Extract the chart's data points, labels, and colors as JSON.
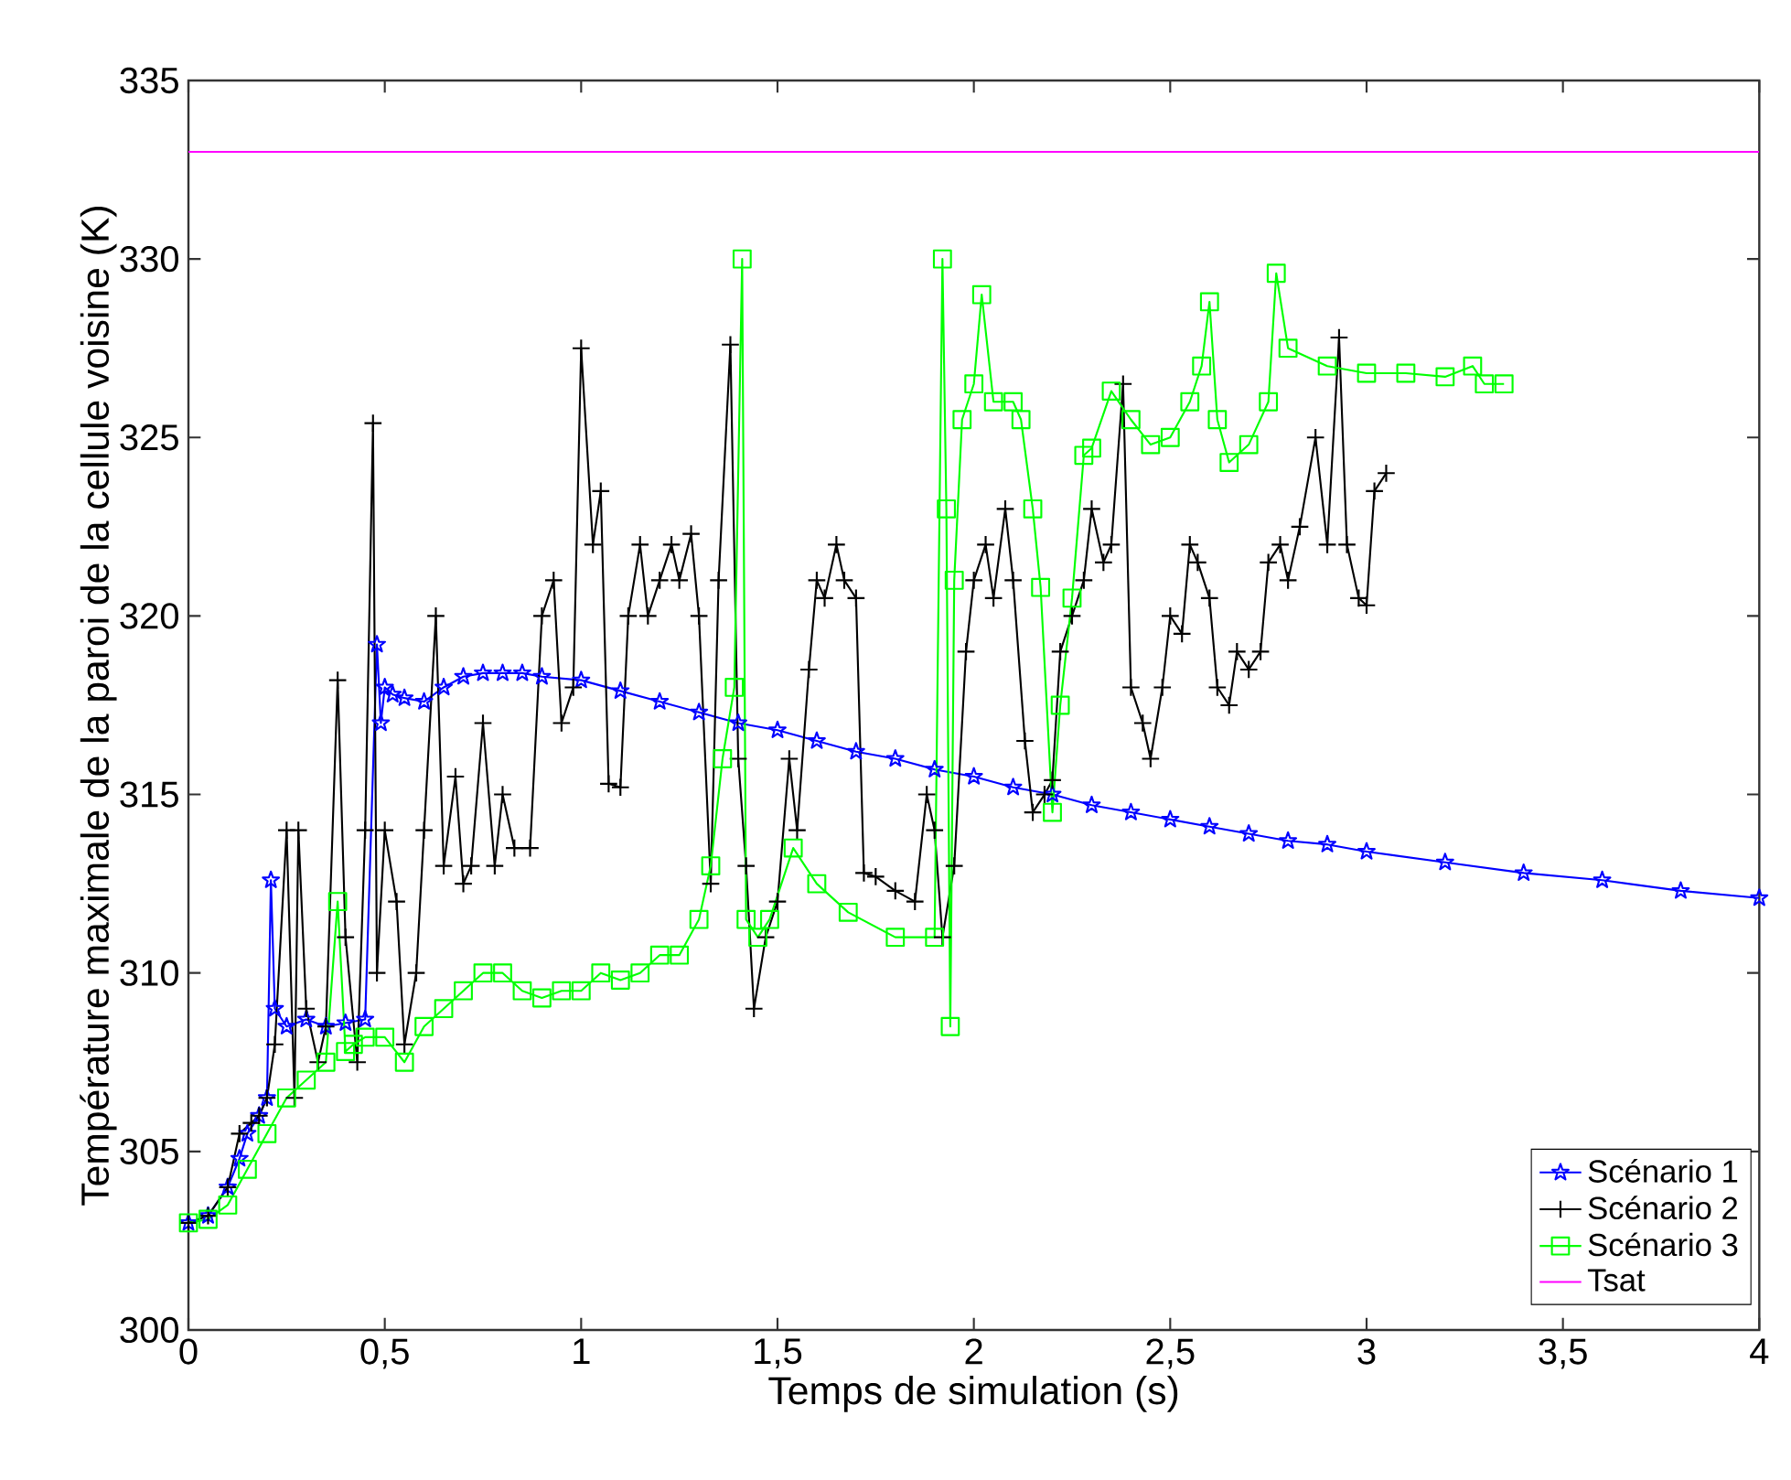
{
  "chart_data": {
    "type": "line",
    "xlabel": "Temps de simulation (s)",
    "ylabel": "Température maximale de la paroi de la cellule voisine (K)",
    "xlim": [
      0,
      4
    ],
    "ylim": [
      300,
      335
    ],
    "xticks": [
      0,
      {
        "value": 0.5,
        "label": "0,5"
      },
      1,
      {
        "value": 1.5,
        "label": "1,5"
      },
      2,
      {
        "value": 2.5,
        "label": "2,5"
      },
      3,
      {
        "value": 3.5,
        "label": "3,5"
      },
      4
    ],
    "yticks": [
      300,
      305,
      310,
      315,
      320,
      325,
      330,
      335
    ],
    "grid": false,
    "legend": "bottom right",
    "line_style": "solid",
    "series": [
      {
        "name": "Scénario 1",
        "color": "#0000ff",
        "marker": "star",
        "x": [
          0,
          0.05,
          0.1,
          0.13,
          0.15,
          0.18,
          0.2,
          0.21,
          0.22,
          0.25,
          0.3,
          0.35,
          0.4,
          0.45,
          0.48,
          0.49,
          0.5,
          0.52,
          0.55,
          0.6,
          0.65,
          0.7,
          0.75,
          0.8,
          0.85,
          0.9,
          1.0,
          1.1,
          1.2,
          1.3,
          1.4,
          1.5,
          1.6,
          1.7,
          1.8,
          1.9,
          2.0,
          2.1,
          2.2,
          2.3,
          2.4,
          2.5,
          2.6,
          2.7,
          2.8,
          2.9,
          3.0,
          3.2,
          3.4,
          3.6,
          3.8,
          4.0
        ],
        "values": [
          303,
          303.2,
          304,
          304.8,
          305.5,
          306,
          306.5,
          312.6,
          309,
          308.5,
          308.7,
          308.5,
          308.6,
          308.7,
          319.2,
          317,
          318,
          317.8,
          317.7,
          317.6,
          318,
          318.3,
          318.4,
          318.4,
          318.4,
          318.3,
          318.2,
          317.9,
          317.6,
          317.3,
          317,
          316.8,
          316.5,
          316.2,
          316,
          315.7,
          315.5,
          315.2,
          315,
          314.7,
          314.5,
          314.3,
          314.1,
          313.9,
          313.7,
          313.6,
          313.4,
          313.1,
          312.8,
          312.6,
          312.3,
          312.1
        ]
      },
      {
        "name": "Scénario 2",
        "color": "#000000",
        "marker": "cross",
        "x": [
          0,
          0.05,
          0.1,
          0.13,
          0.16,
          0.18,
          0.2,
          0.22,
          0.25,
          0.27,
          0.28,
          0.3,
          0.33,
          0.35,
          0.38,
          0.4,
          0.43,
          0.45,
          0.47,
          0.48,
          0.5,
          0.53,
          0.55,
          0.58,
          0.6,
          0.63,
          0.65,
          0.68,
          0.7,
          0.72,
          0.75,
          0.78,
          0.8,
          0.83,
          0.87,
          0.9,
          0.93,
          0.95,
          0.98,
          1.0,
          1.03,
          1.05,
          1.07,
          1.1,
          1.12,
          1.15,
          1.17,
          1.2,
          1.23,
          1.25,
          1.28,
          1.3,
          1.33,
          1.35,
          1.38,
          1.4,
          1.42,
          1.44,
          1.47,
          1.5,
          1.53,
          1.55,
          1.58,
          1.6,
          1.62,
          1.65,
          1.67,
          1.7,
          1.72,
          1.75,
          1.8,
          1.85,
          1.88,
          1.9,
          1.92,
          1.95,
          1.98,
          2.0,
          2.03,
          2.05,
          2.08,
          2.1,
          2.13,
          2.15,
          2.18,
          2.2,
          2.22,
          2.25,
          2.28,
          2.3,
          2.33,
          2.35,
          2.38,
          2.4,
          2.43,
          2.45,
          2.48,
          2.5,
          2.53,
          2.55,
          2.57,
          2.6,
          2.62,
          2.65,
          2.67,
          2.7,
          2.73,
          2.75,
          2.78,
          2.8,
          2.83,
          2.87,
          2.9,
          2.93,
          2.95,
          2.98,
          3.0,
          3.02,
          3.05
        ],
        "values": [
          303,
          303.2,
          304,
          305.5,
          305.8,
          306,
          306.5,
          308,
          314,
          306.5,
          314,
          309,
          307.5,
          308.5,
          318.2,
          311,
          307.5,
          314,
          325.4,
          310,
          314,
          312,
          308,
          310,
          314,
          320,
          313,
          315.5,
          312.5,
          313,
          317,
          313,
          315,
          313.5,
          313.5,
          320,
          321,
          317,
          318,
          327.5,
          322,
          323.5,
          315.3,
          315.2,
          320,
          322,
          320,
          321,
          322,
          321,
          322.3,
          320,
          312.5,
          321,
          327.6,
          316,
          313,
          309,
          311,
          312,
          316,
          314,
          318.5,
          321,
          320.5,
          322,
          321,
          320.5,
          312.8,
          312.7,
          312.3,
          312,
          315,
          314,
          311,
          313,
          319,
          321,
          322,
          320.5,
          323,
          321,
          316.5,
          314.5,
          315,
          315.4,
          319,
          320,
          321,
          323,
          321.5,
          322,
          326.5,
          318,
          317,
          316,
          318,
          320,
          319.5,
          322,
          321.5,
          320.5,
          318,
          317.5,
          319,
          318.5,
          319,
          321.5,
          322,
          321,
          322.5,
          325,
          322,
          327.8,
          322,
          320.5,
          320.3,
          323.5,
          324
        ]
      },
      {
        "name": "Scénario 3",
        "color": "#00ff00",
        "marker": "square",
        "x": [
          0,
          0.05,
          0.1,
          0.15,
          0.2,
          0.25,
          0.3,
          0.35,
          0.38,
          0.4,
          0.42,
          0.45,
          0.5,
          0.55,
          0.6,
          0.65,
          0.7,
          0.75,
          0.8,
          0.85,
          0.9,
          0.95,
          1.0,
          1.05,
          1.1,
          1.15,
          1.2,
          1.25,
          1.3,
          1.33,
          1.36,
          1.39,
          1.41,
          1.42,
          1.45,
          1.48,
          1.54,
          1.6,
          1.68,
          1.8,
          1.9,
          1.92,
          1.93,
          1.94,
          1.95,
          1.97,
          2.0,
          2.02,
          2.05,
          2.1,
          2.12,
          2.15,
          2.17,
          2.2,
          2.22,
          2.25,
          2.28,
          2.3,
          2.35,
          2.4,
          2.45,
          2.5,
          2.55,
          2.58,
          2.6,
          2.62,
          2.65,
          2.7,
          2.75,
          2.77,
          2.8,
          2.9,
          3.0,
          3.1,
          3.2,
          3.27,
          3.3,
          3.35
        ],
        "values": [
          303,
          303.1,
          303.5,
          304.5,
          305.5,
          306.5,
          307,
          307.5,
          312,
          307.8,
          308,
          308.2,
          308.2,
          307.5,
          308.5,
          309,
          309.5,
          310,
          310,
          309.5,
          309.3,
          309.5,
          309.5,
          310,
          309.8,
          310,
          310.5,
          310.5,
          311.5,
          313,
          316,
          318,
          330,
          311.5,
          311,
          311.5,
          313.5,
          312.5,
          311.7,
          311,
          311,
          330,
          323,
          308.5,
          321,
          325.5,
          326.5,
          329,
          326,
          326,
          325.5,
          323,
          320.8,
          314.5,
          317.5,
          320.5,
          324.5,
          324.7,
          326.3,
          325.5,
          324.8,
          325,
          326,
          327,
          328.8,
          325.5,
          324.3,
          324.8,
          326,
          329.6,
          327.5,
          327,
          326.8,
          326.8,
          326.7,
          327,
          326.5,
          326.5
        ]
      },
      {
        "name": "Tsat",
        "color": "#ff00ff",
        "marker": "none",
        "x": [
          0,
          4
        ],
        "values": [
          333,
          333
        ]
      }
    ]
  }
}
